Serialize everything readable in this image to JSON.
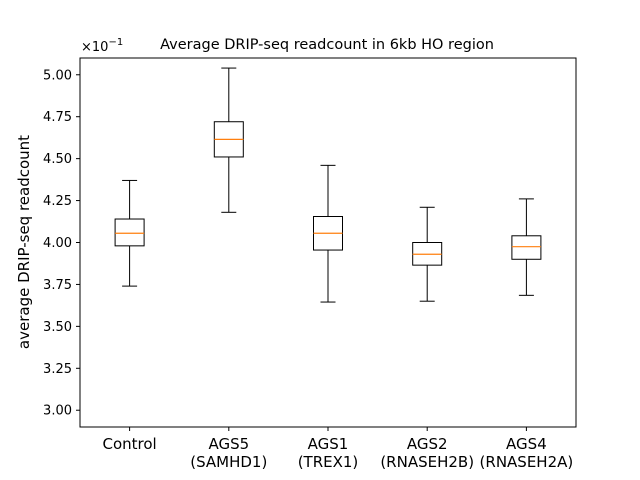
{
  "chart_data": {
    "type": "box",
    "title": "Average DRIP-seq readcount in 6kb HO region",
    "ylabel": "average DRIP-seq readcount",
    "xlabel": "",
    "y_offset_label": "×10",
    "y_offset_exponent": "−1",
    "ylim": [
      2.9,
      5.1
    ],
    "yticks": [
      3.0,
      3.25,
      3.5,
      3.75,
      4.0,
      4.25,
      4.5,
      4.75,
      5.0
    ],
    "ytick_labels": [
      "3.00",
      "3.25",
      "3.50",
      "3.75",
      "4.00",
      "4.25",
      "4.50",
      "4.75",
      "5.00"
    ],
    "categories": [
      {
        "line1": "Control",
        "line2": ""
      },
      {
        "line1": "AGS5",
        "line2": "(SAMHD1)"
      },
      {
        "line1": "AGS1",
        "line2": "(TREX1)"
      },
      {
        "line1": "AGS2",
        "line2": "(RNASEH2B)"
      },
      {
        "line1": "AGS4",
        "line2": "(RNASEH2A)"
      }
    ],
    "boxes": [
      {
        "whislo": 3.74,
        "q1": 3.98,
        "med": 4.055,
        "q3": 4.14,
        "whishi": 4.37
      },
      {
        "whislo": 4.18,
        "q1": 4.51,
        "med": 4.615,
        "q3": 4.72,
        "whishi": 5.04
      },
      {
        "whislo": 3.645,
        "q1": 3.955,
        "med": 4.055,
        "q3": 4.155,
        "whishi": 4.46
      },
      {
        "whislo": 3.65,
        "q1": 3.865,
        "med": 3.93,
        "q3": 4.0,
        "whishi": 4.21
      },
      {
        "whislo": 3.685,
        "q1": 3.9,
        "med": 3.975,
        "q3": 4.04,
        "whishi": 4.26
      }
    ],
    "grid": false,
    "colors": {
      "box": "#000000",
      "median": "#ff7f0e",
      "axes": "#000000"
    }
  }
}
